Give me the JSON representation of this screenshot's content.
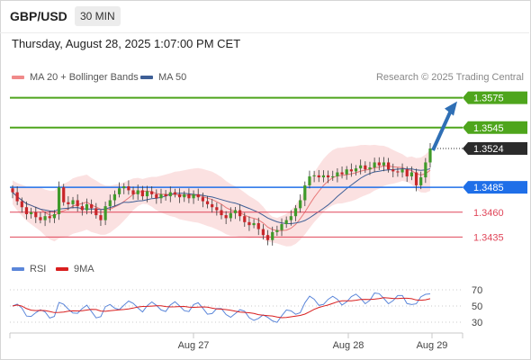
{
  "header": {
    "symbol": "GBP/USD",
    "timeframe": "30 MIN",
    "timestamp": "Thursday, August 28, 2025 1:07:00 PM CET"
  },
  "legend": {
    "bollinger_label": "MA 20 + Bollinger Bands",
    "ma50_label": "MA 50",
    "research": "Research © 2025 Trading Central"
  },
  "rsi_legend": {
    "rsi_label": "RSI",
    "ma_label": "9MA"
  },
  "colors": {
    "target_green": "#4ea51c",
    "current_dark": "#2b2b2b",
    "pivot_blue": "#1f6fe8",
    "support_red": "#e0475a",
    "arrow_blue": "#2f6fb5",
    "candle_up": "#3f9a2a",
    "candle_down": "#c8262a",
    "bollinger_fill": "#f8c8c8",
    "ma20": "#e87878",
    "ma50": "#3e5f96",
    "rsi_line": "#5b86d9",
    "rsi_ma": "#d91f1f"
  },
  "chart_data": {
    "type": "candlestick",
    "price_axis_range": [
      1.342,
      1.359
    ],
    "x_labels": [
      "Aug 27",
      "Aug 28",
      "Aug 29"
    ],
    "levels": [
      {
        "value": 1.3575,
        "label": "1.3575",
        "kind": "resistance-target"
      },
      {
        "value": 1.3545,
        "label": "1.3545",
        "kind": "resistance-target"
      },
      {
        "value": 1.3524,
        "label": "1.3524",
        "kind": "current-price"
      },
      {
        "value": 1.3485,
        "label": "1.3485",
        "kind": "pivot"
      },
      {
        "value": 1.346,
        "label": "1.3460",
        "kind": "support"
      },
      {
        "value": 1.3435,
        "label": "1.3435",
        "kind": "support"
      }
    ],
    "close_series": [
      1.348,
      1.3471,
      1.3465,
      1.3458,
      1.346,
      1.3455,
      1.3452,
      1.3456,
      1.3454,
      1.3458,
      1.3485,
      1.347,
      1.3468,
      1.3472,
      1.3466,
      1.3462,
      1.3468,
      1.3464,
      1.3457,
      1.3452,
      1.3466,
      1.3472,
      1.3478,
      1.3484,
      1.3486,
      1.3482,
      1.3478,
      1.3482,
      1.3476,
      1.3481,
      1.3478,
      1.3474,
      1.3478,
      1.3476,
      1.348,
      1.3478,
      1.3475,
      1.3478,
      1.3474,
      1.3478,
      1.3475,
      1.3471,
      1.3468,
      1.3465,
      1.3462,
      1.3457,
      1.3454,
      1.3459,
      1.3462,
      1.3456,
      1.345,
      1.3447,
      1.3449,
      1.3443,
      1.3437,
      1.3432,
      1.344,
      1.3442,
      1.3448,
      1.3452,
      1.3456,
      1.3464,
      1.3472,
      1.3487,
      1.3496,
      1.3497,
      1.3495,
      1.3497,
      1.3495,
      1.3496,
      1.35,
      1.3498,
      1.3503,
      1.3501,
      1.3504,
      1.3507,
      1.3503,
      1.3505,
      1.351,
      1.3507,
      1.351,
      1.3503,
      1.3501,
      1.35,
      1.3503,
      1.3496,
      1.35,
      1.3487,
      1.3495,
      1.351,
      1.3524
    ],
    "ma20_range": [
      1.3455,
      1.3505
    ],
    "ma50_range": [
      1.3465,
      1.3485
    ],
    "rsi_axis": [
      30,
      50,
      70
    ],
    "rsi_latest": 65,
    "forecast_arrow": {
      "from": 1.3524,
      "to": 1.3575
    }
  }
}
